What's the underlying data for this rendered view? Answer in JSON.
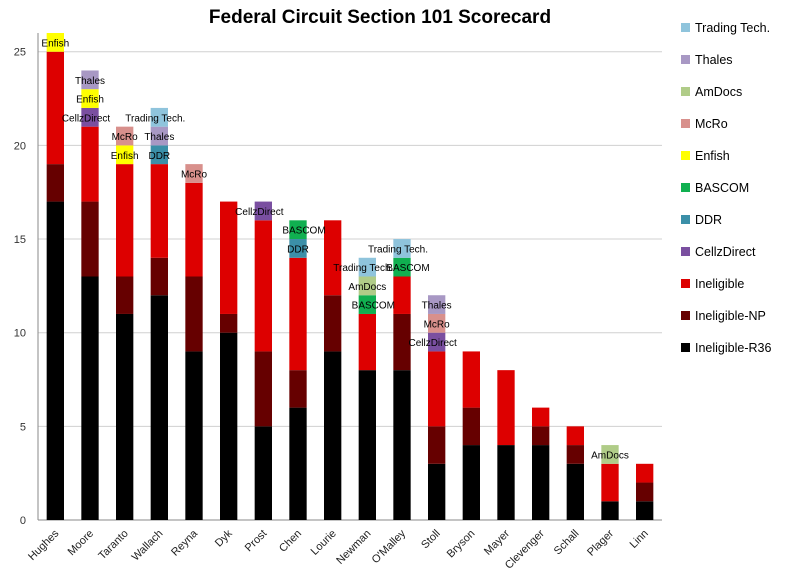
{
  "chart_data": {
    "type": "bar",
    "stacked": true,
    "title": "Federal Circuit Section 101 Scorecard",
    "xlabel": "",
    "ylabel": "",
    "ylim": [
      0,
      26
    ],
    "yticks": [
      0,
      5,
      10,
      15,
      20,
      25
    ],
    "grid": true,
    "legend_position": "right",
    "categories": [
      "Hughes",
      "Moore",
      "Taranto",
      "Wallach",
      "Reyna",
      "Dyk",
      "Prost",
      "Chen",
      "Lourie",
      "Newman",
      "O'Malley",
      "Stoll",
      "Bryson",
      "Mayer",
      "Clevenger",
      "Schall",
      "Plager",
      "Linn"
    ],
    "series": [
      {
        "name": "Ineligible-R36",
        "color": "#000000",
        "values": [
          17,
          13,
          11,
          12,
          9,
          10,
          5,
          6,
          9,
          8,
          8,
          3,
          4,
          4,
          4,
          3,
          1,
          1
        ]
      },
      {
        "name": "Ineligible-NP",
        "color": "#660000",
        "values": [
          2,
          4,
          2,
          2,
          4,
          1,
          4,
          2,
          3,
          0,
          3,
          2,
          2,
          0,
          1,
          1,
          0,
          1
        ]
      },
      {
        "name": "Ineligible",
        "color": "#dd0000",
        "values": [
          6,
          4,
          6,
          5,
          5,
          6,
          7,
          6,
          4,
          3,
          2,
          4,
          3,
          4,
          1,
          1,
          2,
          1
        ]
      },
      {
        "name": "CellzDirect",
        "color": "#7a4fa0",
        "values": [
          0,
          1,
          0,
          0,
          0,
          0,
          1,
          0,
          0,
          0,
          0,
          1,
          0,
          0,
          0,
          0,
          0,
          0
        ]
      },
      {
        "name": "DDR",
        "color": "#3b8fa8",
        "values": [
          0,
          0,
          0,
          1,
          0,
          0,
          0,
          1,
          0,
          0,
          0,
          0,
          0,
          0,
          0,
          0,
          0,
          0
        ]
      },
      {
        "name": "BASCOM",
        "color": "#10b050",
        "values": [
          0,
          0,
          0,
          0,
          0,
          0,
          0,
          1,
          0,
          1,
          1,
          0,
          0,
          0,
          0,
          0,
          0,
          0
        ]
      },
      {
        "name": "Enfish",
        "color": "#ffff00",
        "values": [
          1,
          1,
          1,
          0,
          0,
          0,
          0,
          0,
          0,
          0,
          0,
          0,
          0,
          0,
          0,
          0,
          0,
          0
        ]
      },
      {
        "name": "McRo",
        "color": "#d8908c",
        "values": [
          0,
          0,
          1,
          0,
          1,
          0,
          0,
          0,
          0,
          0,
          0,
          1,
          0,
          0,
          0,
          0,
          0,
          0
        ]
      },
      {
        "name": "AmDocs",
        "color": "#b0cc88",
        "values": [
          0,
          0,
          0,
          0,
          0,
          0,
          0,
          0,
          0,
          1,
          0,
          0,
          0,
          0,
          0,
          0,
          1,
          0
        ]
      },
      {
        "name": "Thales",
        "color": "#a898c4",
        "values": [
          0,
          1,
          0,
          1,
          0,
          0,
          0,
          0,
          0,
          0,
          0,
          1,
          0,
          0,
          0,
          0,
          0,
          0
        ]
      },
      {
        "name": "Trading Tech.",
        "color": "#8fc4dc",
        "values": [
          0,
          0,
          0,
          1,
          0,
          0,
          0,
          0,
          0,
          1,
          1,
          0,
          0,
          0,
          0,
          0,
          0,
          0
        ]
      }
    ],
    "legend_order": [
      "Trading Tech.",
      "Thales",
      "AmDocs",
      "McRo",
      "Enfish",
      "BASCOM",
      "DDR",
      "CellzDirect",
      "Ineligible",
      "Ineligible-NP",
      "Ineligible-R36"
    ],
    "labeled_series": [
      "CellzDirect",
      "DDR",
      "BASCOM",
      "Enfish",
      "McRo",
      "AmDocs",
      "Thales",
      "Trading Tech."
    ]
  }
}
